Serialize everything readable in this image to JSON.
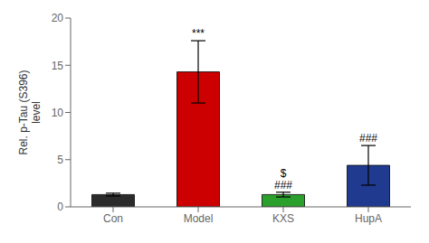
{
  "chart_data": {
    "type": "bar",
    "categories": [
      "Con",
      "Model",
      "KXS",
      "HupA"
    ],
    "values": [
      1.3,
      14.3,
      1.3,
      4.4
    ],
    "errors": [
      0.15,
      3.3,
      0.25,
      2.1
    ],
    "colors": [
      "#2b2b2b",
      "#cc0000",
      "#2ca02c",
      "#1f3a8f"
    ],
    "ylabel": [
      "Rel. p-Tau (S396)",
      "level"
    ],
    "ylim": [
      0,
      20
    ],
    "yticks": [
      0,
      5,
      10,
      15,
      20
    ],
    "grid": false,
    "annotations": [
      {
        "category": "Model",
        "text": "***"
      },
      {
        "category": "KXS",
        "text": "###"
      },
      {
        "category": "KXS",
        "text": "$"
      },
      {
        "category": "HupA",
        "text": "###"
      }
    ]
  }
}
